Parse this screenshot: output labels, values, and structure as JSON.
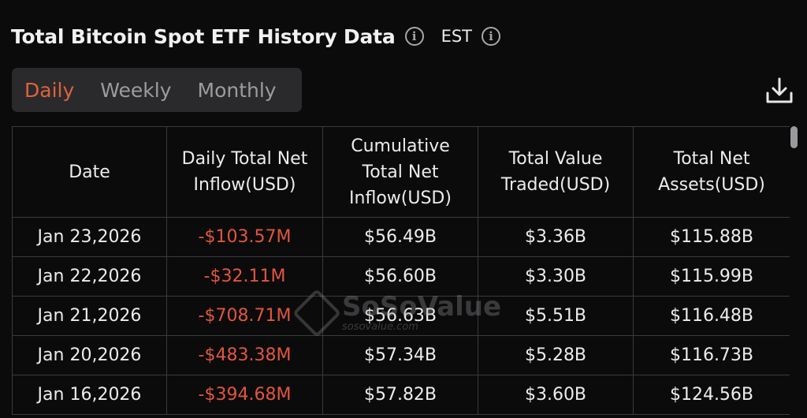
{
  "header": {
    "title": "Total Bitcoin Spot ETF History Data",
    "timezone": "EST",
    "info_icon": "info-circle-icon"
  },
  "tabs": [
    {
      "label": "Daily",
      "active": true
    },
    {
      "label": "Weekly",
      "active": false
    },
    {
      "label": "Monthly",
      "active": false
    }
  ],
  "toolbar": {
    "download_icon": "download-icon"
  },
  "table": {
    "columns": [
      [
        "Date"
      ],
      [
        "Daily Total Net",
        "Inflow(USD)"
      ],
      [
        "Cumulative",
        "Total Net",
        "Inflow(USD)"
      ],
      [
        "Total Value",
        "Traded(USD)"
      ],
      [
        "Total Net",
        "Assets(USD)"
      ]
    ],
    "rows": [
      [
        "Jan 23,2026",
        "-$103.57M",
        "$56.49B",
        "$3.36B",
        "$115.88B"
      ],
      [
        "Jan 22,2026",
        "-$32.11M",
        "$56.60B",
        "$3.30B",
        "$115.99B"
      ],
      [
        "Jan 21,2026",
        "-$708.71M",
        "$56.63B",
        "$5.51B",
        "$116.48B"
      ],
      [
        "Jan 20,2026",
        "-$483.38M",
        "$57.34B",
        "$5.28B",
        "$116.73B"
      ],
      [
        "Jan 16,2026",
        "-$394.68M",
        "$57.82B",
        "$3.60B",
        "$124.56B"
      ]
    ]
  },
  "watermark": {
    "main": "SoSoValue",
    "sub": "sosovalue.com"
  },
  "colors": {
    "accent": "#e0613c",
    "negative": "#e2553c",
    "background": "#0b0b0c",
    "tab_bg": "#2a2a2c"
  }
}
